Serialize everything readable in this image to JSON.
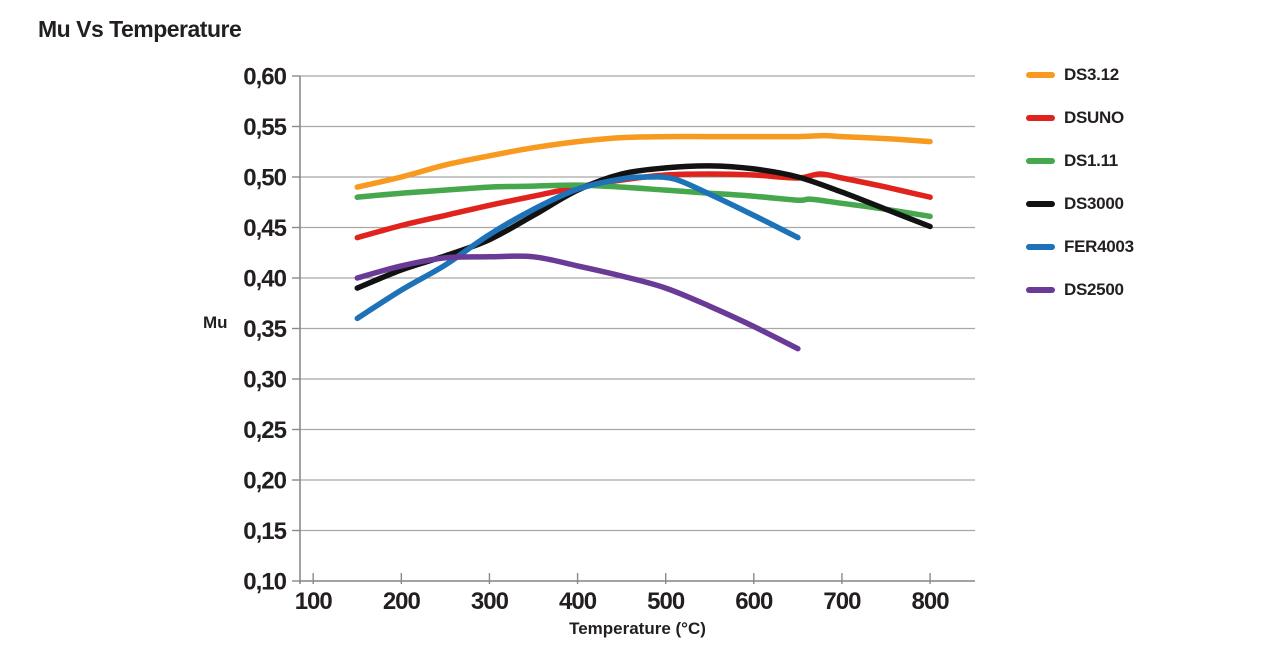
{
  "page_title": "Mu Vs Temperature",
  "chart_data": {
    "type": "line",
    "title": "Mu Vs Temperature",
    "xlabel": "Temperature (°C)",
    "ylabel": "Mu",
    "xlim": [
      85,
      851
    ],
    "ylim": [
      0.1,
      0.6
    ],
    "grid": "horizontal-only",
    "legend_position": "right",
    "x_ticks": [
      100,
      200,
      300,
      400,
      500,
      600,
      700,
      800
    ],
    "x_tick_labels": [
      "100",
      "200",
      "300",
      "400",
      "500",
      "600",
      "700",
      "800"
    ],
    "y_ticks": [
      0.6,
      0.55,
      0.5,
      0.45,
      0.4,
      0.35,
      0.3,
      0.25,
      0.2,
      0.15,
      0.1
    ],
    "y_tick_labels": [
      "0,60",
      "0,55",
      "0,50",
      "0,45",
      "0,40",
      "0,35",
      "0,30",
      "0,25",
      "0,20",
      "0,15",
      "0,10"
    ],
    "colors": {
      "grid": "#a7a7a7",
      "axis": "#8a8a8a",
      "text": "#231f20"
    },
    "series": [
      {
        "name": "DS3.12",
        "color": "#F79A1F",
        "x": [
          150,
          200,
          250,
          300,
          350,
          400,
          450,
          500,
          550,
          600,
          650,
          680,
          700,
          750,
          800
        ],
        "y": [
          0.49,
          0.5,
          0.512,
          0.521,
          0.529,
          0.535,
          0.539,
          0.54,
          0.54,
          0.54,
          0.54,
          0.541,
          0.54,
          0.538,
          0.535
        ]
      },
      {
        "name": "DSUNO",
        "color": "#E0231C",
        "x": [
          150,
          200,
          250,
          300,
          350,
          400,
          450,
          500,
          550,
          600,
          650,
          675,
          700,
          750,
          800
        ],
        "y": [
          0.44,
          0.452,
          0.462,
          0.472,
          0.481,
          0.49,
          0.497,
          0.502,
          0.503,
          0.502,
          0.499,
          0.503,
          0.499,
          0.49,
          0.48
        ]
      },
      {
        "name": "DS1.11",
        "color": "#46A74D",
        "x": [
          150,
          200,
          250,
          300,
          350,
          400,
          450,
          500,
          550,
          600,
          650,
          665,
          700,
          750,
          800
        ],
        "y": [
          0.48,
          0.484,
          0.487,
          0.49,
          0.491,
          0.492,
          0.49,
          0.487,
          0.484,
          0.481,
          0.477,
          0.478,
          0.474,
          0.468,
          0.461
        ]
      },
      {
        "name": "DS3000",
        "color": "#121212",
        "x": [
          150,
          200,
          250,
          300,
          350,
          400,
          450,
          500,
          550,
          600,
          650,
          700,
          750,
          800
        ],
        "y": [
          0.39,
          0.408,
          0.422,
          0.438,
          0.462,
          0.487,
          0.503,
          0.509,
          0.511,
          0.508,
          0.5,
          0.485,
          0.468,
          0.451
        ]
      },
      {
        "name": "FER4003",
        "color": "#1D72B8",
        "x": [
          150,
          200,
          250,
          300,
          350,
          400,
          450,
          480,
          510,
          550,
          600,
          650
        ],
        "y": [
          0.36,
          0.388,
          0.413,
          0.443,
          0.468,
          0.488,
          0.498,
          0.5,
          0.498,
          0.483,
          0.462,
          0.44
        ]
      },
      {
        "name": "DS2500",
        "color": "#6A3B96",
        "x": [
          150,
          200,
          250,
          300,
          350,
          400,
          450,
          500,
          550,
          600,
          650
        ],
        "y": [
          0.4,
          0.412,
          0.42,
          0.421,
          0.421,
          0.412,
          0.402,
          0.39,
          0.372,
          0.352,
          0.33
        ]
      }
    ]
  }
}
